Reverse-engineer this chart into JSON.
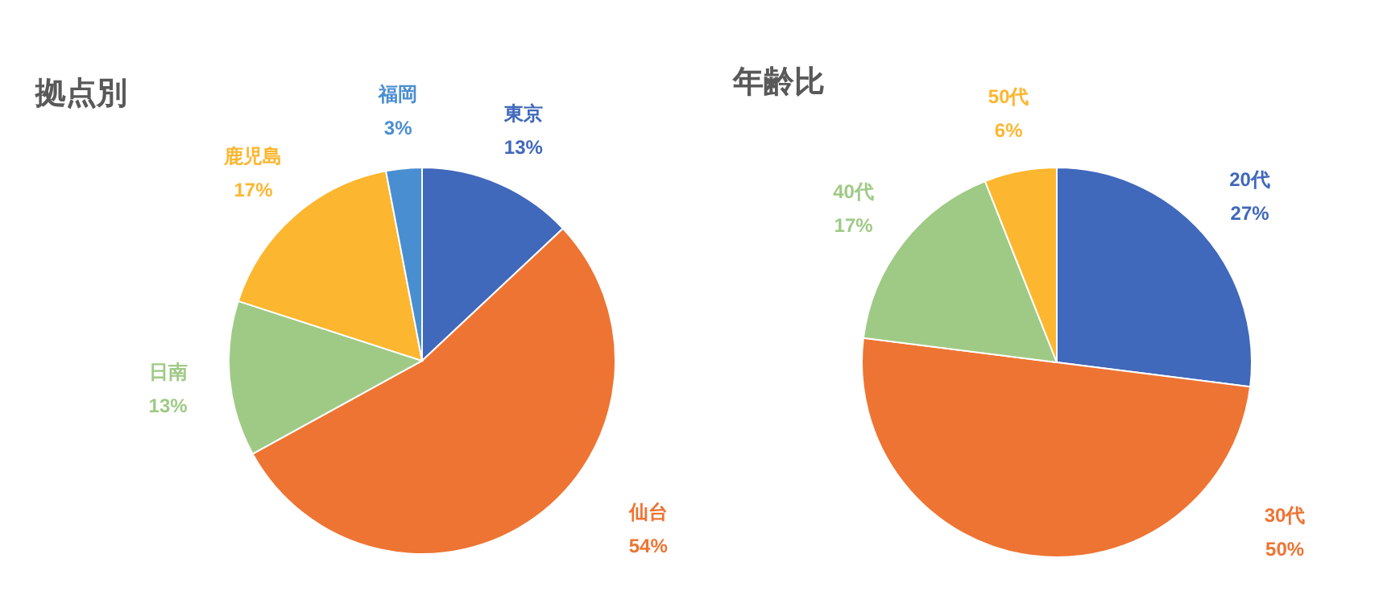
{
  "chart_data": [
    {
      "type": "pie",
      "title": "拠点別",
      "categories": [
        "東京",
        "仙台",
        "日南",
        "鹿児島",
        "福岡"
      ],
      "values": [
        13,
        54,
        13,
        17,
        3
      ],
      "value_labels": [
        "13%",
        "54%",
        "13%",
        "17%",
        "3%"
      ],
      "colors": [
        "#4068bb",
        "#ee7433",
        "#9fca86",
        "#fdb62f",
        "#4a8ed2"
      ]
    },
    {
      "type": "pie",
      "title": "年齢比",
      "categories": [
        "20代",
        "30代",
        "40代",
        "50代"
      ],
      "values": [
        27,
        50,
        17,
        6
      ],
      "value_labels": [
        "27%",
        "50%",
        "17%",
        "6%"
      ],
      "colors": [
        "#4068bb",
        "#ee7433",
        "#9fca86",
        "#fdb62f"
      ]
    }
  ]
}
